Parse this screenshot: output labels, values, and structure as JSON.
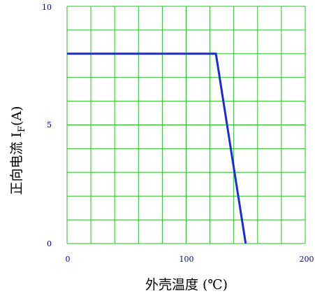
{
  "chart_data": {
    "type": "line",
    "xlabel": "外壳温度 (℃)",
    "ylabel_main": "正向电流 I",
    "ylabel_sub": "F",
    "ylabel_unit": "(A)",
    "xlim": [
      0,
      200
    ],
    "ylim": [
      0,
      10
    ],
    "x_ticks": [
      "0",
      "100",
      "200"
    ],
    "y_ticks": [
      "0",
      "5",
      "10"
    ],
    "grid": true,
    "series": [
      {
        "x": [
          0,
          125,
          150
        ],
        "y": [
          8,
          8,
          0
        ]
      }
    ],
    "colors": {
      "grid": "#22c522",
      "line": "#1a2cd9",
      "tick_text": "#00008b"
    }
  }
}
